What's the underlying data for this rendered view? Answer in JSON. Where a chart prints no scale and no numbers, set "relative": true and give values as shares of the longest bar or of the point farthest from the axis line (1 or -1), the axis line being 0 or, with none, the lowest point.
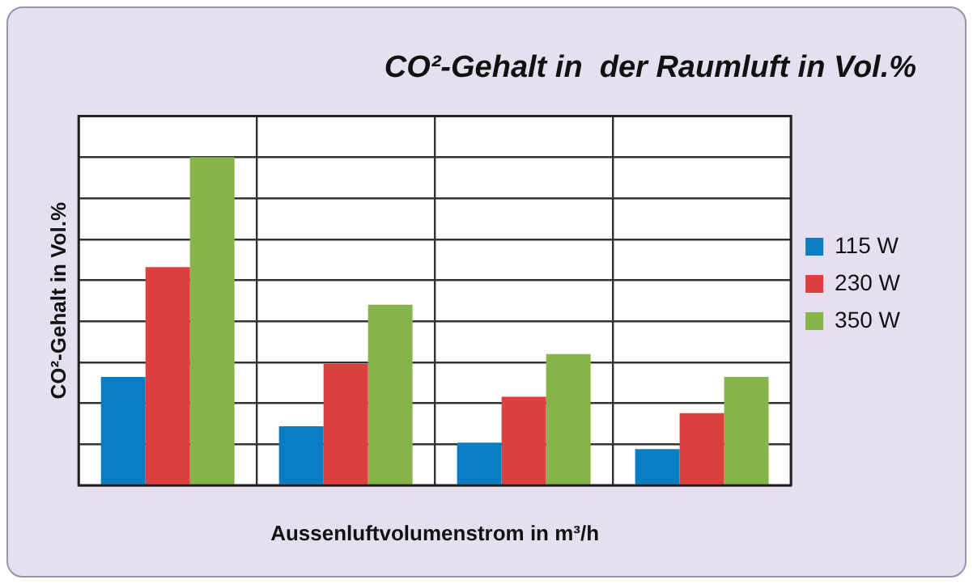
{
  "chart_data": {
    "type": "bar",
    "title": "CO²-Gehalt in  der Raumluft in Vol.%",
    "xlabel": "Aussenluftvolumenstrom in m³/h",
    "ylabel": "CO²-Gehalt in Vol.%",
    "relative": true,
    "grid": true,
    "legend": "right",
    "categories": [
      null,
      null,
      null,
      null
    ],
    "series": [
      {
        "name": "115 W",
        "color": "#0a7cc1",
        "values": [
          0.33,
          0.18,
          0.13,
          0.11
        ]
      },
      {
        "name": "230 W",
        "color": "#de4040",
        "values": [
          0.665,
          0.37,
          0.27,
          0.22
        ]
      },
      {
        "name": "350 W",
        "color": "#84b44a",
        "values": [
          1,
          0.55,
          0.4,
          0.33
        ]
      }
    ]
  }
}
